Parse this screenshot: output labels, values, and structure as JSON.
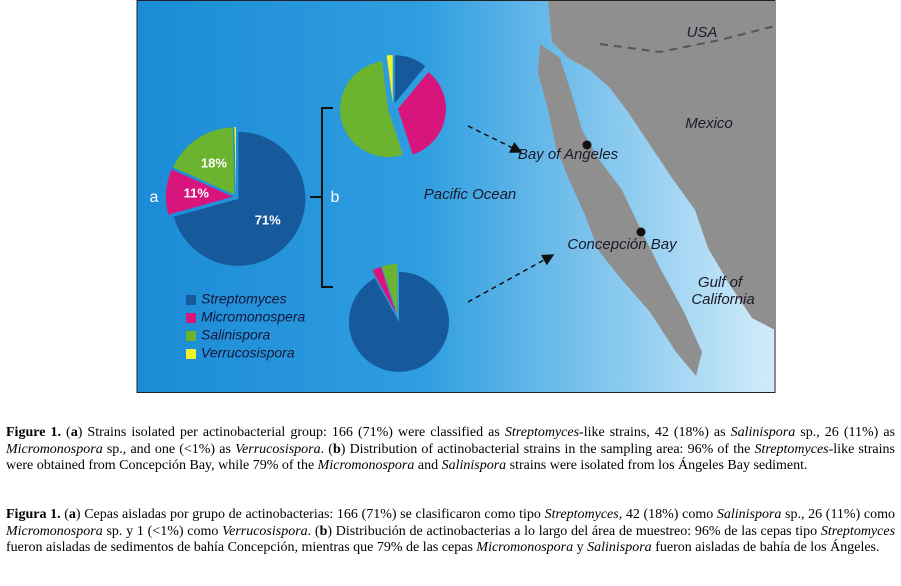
{
  "chart_data": [
    {
      "type": "pie",
      "categories": [
        "Streptomyces",
        "Micromonospera",
        "Salinispora",
        "Verrucosispora"
      ],
      "colors": [
        "#175a9c",
        "#d8157d",
        "#6cb42f",
        "#eef22a"
      ],
      "values": [
        71,
        11,
        18,
        0.4
      ],
      "value_labels": [
        "71%",
        "11%",
        "18%",
        null
      ]
    },
    {
      "type": "pie",
      "values": [
        11,
        34,
        53,
        2
      ]
    },
    {
      "type": "pie",
      "values": [
        92,
        3,
        5
      ]
    }
  ],
  "panels": {
    "a": "a",
    "b": "b"
  },
  "map_labels": {
    "usa": "USA",
    "mexico": "Mexico",
    "bay_angeles": "Bay of Angeles",
    "pacific": "Pacific Ocean",
    "concepcion": "Concepción Bay",
    "gulf_1": "Gulf of",
    "gulf_2": "California"
  },
  "captions": [
    [
      {
        "text": "Figure 1.",
        "style": "b"
      },
      {
        "text": " (",
        "style": null
      },
      {
        "text": "a",
        "style": "b"
      },
      {
        "text": ") Strains isolated per actinobacterial group: 166 (71%) were classified as ",
        "style": null
      },
      {
        "text": "Streptomyces",
        "style": "i"
      },
      {
        "text": "-like strains, 42 (18%) as ",
        "style": null
      },
      {
        "text": "Salinispora",
        "style": "i"
      },
      {
        "text": " sp., 26 (11%) as ",
        "style": null
      },
      {
        "text": "Micromonospora",
        "style": "i"
      },
      {
        "text": " sp., and one (<1%) as ",
        "style": null
      },
      {
        "text": "Verrucosispora",
        "style": "i"
      },
      {
        "text": ". (",
        "style": null
      },
      {
        "text": "b",
        "style": "b"
      },
      {
        "text": ") Distribution of actinobacterial strains in the sampling area: 96% of the ",
        "style": null
      },
      {
        "text": "Streptomyces",
        "style": "i"
      },
      {
        "text": "-like strains were obtained from Concepción Bay, while 79% of the ",
        "style": null
      },
      {
        "text": "Micromonospora",
        "style": "i"
      },
      {
        "text": " and ",
        "style": null
      },
      {
        "text": "Salinispora",
        "style": "i"
      },
      {
        "text": " strains were isolated from los Ángeles Bay sediment.",
        "style": null
      }
    ],
    [
      {
        "text": "Figura 1.",
        "style": "b"
      },
      {
        "text": " (",
        "style": null
      },
      {
        "text": "a",
        "style": "b"
      },
      {
        "text": ") Cepas aisladas por grupo de actinobacterias: 166 (71%) se clasificaron como tipo ",
        "style": null
      },
      {
        "text": "Streptomyces",
        "style": "i"
      },
      {
        "text": ", 42 (18%) como ",
        "style": null
      },
      {
        "text": "Salinispora",
        "style": "i"
      },
      {
        "text": " sp., 26 (11%) como ",
        "style": null
      },
      {
        "text": "Micromonospora",
        "style": "i"
      },
      {
        "text": " sp. y 1 (<1%) como ",
        "style": null
      },
      {
        "text": "Verrucosispora",
        "style": "i"
      },
      {
        "text": ". (",
        "style": null
      },
      {
        "text": "b",
        "style": "b"
      },
      {
        "text": ") Distribución de actinobacterias a lo largo del área de muestreo: 96% de las cepas tipo ",
        "style": null
      },
      {
        "text": "Streptomyces",
        "style": "i"
      },
      {
        "text": " fueron aisladas de sedimentos de bahía Concepción, mientras que 79% de las cepas ",
        "style": null
      },
      {
        "text": "Micromonospora",
        "style": "i"
      },
      {
        "text": " y ",
        "style": null
      },
      {
        "text": "Salinispora",
        "style": "i"
      },
      {
        "text": " fueron aisladas de bahía de los Ángeles.",
        "style": null
      }
    ]
  ]
}
